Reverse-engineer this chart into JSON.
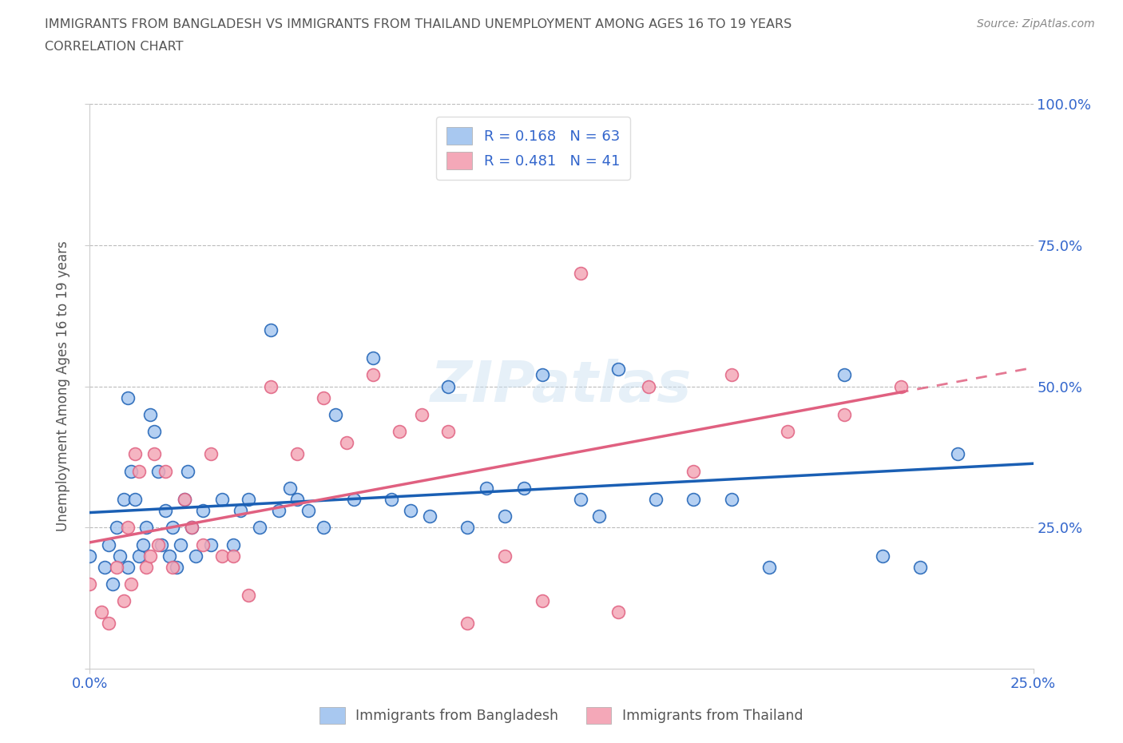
{
  "title_line1": "IMMIGRANTS FROM BANGLADESH VS IMMIGRANTS FROM THAILAND UNEMPLOYMENT AMONG AGES 16 TO 19 YEARS",
  "title_line2": "CORRELATION CHART",
  "source": "Source: ZipAtlas.com",
  "ylabel": "Unemployment Among Ages 16 to 19 years",
  "xlim": [
    0.0,
    0.25
  ],
  "ylim": [
    0.0,
    1.0
  ],
  "bangladesh_R": 0.168,
  "bangladesh_N": 63,
  "thailand_R": 0.481,
  "thailand_N": 41,
  "bangladesh_color": "#a8c8f0",
  "thailand_color": "#f4a8b8",
  "bangladesh_line_color": "#1a5fb4",
  "thailand_line_color": "#e06080",
  "bangladesh_x": [
    0.0,
    0.004,
    0.005,
    0.006,
    0.007,
    0.008,
    0.009,
    0.01,
    0.01,
    0.011,
    0.012,
    0.013,
    0.014,
    0.015,
    0.016,
    0.017,
    0.018,
    0.019,
    0.02,
    0.021,
    0.022,
    0.023,
    0.024,
    0.025,
    0.026,
    0.027,
    0.028,
    0.03,
    0.032,
    0.035,
    0.038,
    0.04,
    0.042,
    0.045,
    0.048,
    0.05,
    0.053,
    0.055,
    0.058,
    0.062,
    0.065,
    0.07,
    0.075,
    0.08,
    0.085,
    0.09,
    0.095,
    0.1,
    0.105,
    0.11,
    0.115,
    0.12,
    0.13,
    0.135,
    0.14,
    0.15,
    0.16,
    0.17,
    0.18,
    0.2,
    0.21,
    0.22,
    0.23
  ],
  "bangladesh_y": [
    0.2,
    0.18,
    0.22,
    0.15,
    0.25,
    0.2,
    0.3,
    0.18,
    0.48,
    0.35,
    0.3,
    0.2,
    0.22,
    0.25,
    0.45,
    0.42,
    0.35,
    0.22,
    0.28,
    0.2,
    0.25,
    0.18,
    0.22,
    0.3,
    0.35,
    0.25,
    0.2,
    0.28,
    0.22,
    0.3,
    0.22,
    0.28,
    0.3,
    0.25,
    0.6,
    0.28,
    0.32,
    0.3,
    0.28,
    0.25,
    0.45,
    0.3,
    0.55,
    0.3,
    0.28,
    0.27,
    0.5,
    0.25,
    0.32,
    0.27,
    0.32,
    0.52,
    0.3,
    0.27,
    0.53,
    0.3,
    0.3,
    0.3,
    0.18,
    0.52,
    0.2,
    0.18,
    0.38
  ],
  "thailand_x": [
    0.0,
    0.003,
    0.005,
    0.007,
    0.009,
    0.01,
    0.011,
    0.012,
    0.013,
    0.015,
    0.016,
    0.017,
    0.018,
    0.02,
    0.022,
    0.025,
    0.027,
    0.03,
    0.032,
    0.035,
    0.038,
    0.042,
    0.048,
    0.055,
    0.062,
    0.068,
    0.075,
    0.082,
    0.088,
    0.095,
    0.1,
    0.11,
    0.12,
    0.13,
    0.14,
    0.148,
    0.16,
    0.17,
    0.185,
    0.2,
    0.215
  ],
  "thailand_y": [
    0.15,
    0.1,
    0.08,
    0.18,
    0.12,
    0.25,
    0.15,
    0.38,
    0.35,
    0.18,
    0.2,
    0.38,
    0.22,
    0.35,
    0.18,
    0.3,
    0.25,
    0.22,
    0.38,
    0.2,
    0.2,
    0.13,
    0.5,
    0.38,
    0.48,
    0.4,
    0.52,
    0.42,
    0.45,
    0.42,
    0.08,
    0.2,
    0.12,
    0.7,
    0.1,
    0.5,
    0.35,
    0.52,
    0.42,
    0.45,
    0.5
  ]
}
